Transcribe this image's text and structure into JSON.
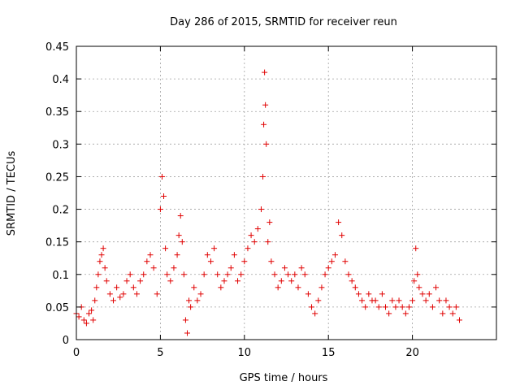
{
  "chart_data": {
    "type": "scatter",
    "title": "Day 286 of 2015, SRMTID for receiver reun",
    "xlabel": "GPS time / hours",
    "ylabel": "SRMTID / TECUs",
    "xlim": [
      0,
      25
    ],
    "ylim": [
      0,
      0.45
    ],
    "xticks": [
      0,
      5,
      10,
      15,
      20
    ],
    "xtick_labels": [
      "0",
      "5",
      "10",
      "15",
      "20"
    ],
    "yticks": [
      0,
      0.05,
      0.1,
      0.15,
      0.2,
      0.25,
      0.3,
      0.35,
      0.4,
      0.45
    ],
    "ytick_labels": [
      "0",
      "0.05",
      "0.1",
      "0.15",
      "0.2",
      "0.25",
      "0.3",
      "0.35",
      "0.4",
      "0.45"
    ],
    "grid": true,
    "marker": "+",
    "series": [
      {
        "name": "SRMTID",
        "color": "#e00000",
        "x": [
          0.0,
          0.15,
          0.3,
          0.45,
          0.6,
          0.75,
          0.9,
          1.0,
          1.1,
          1.2,
          1.3,
          1.4,
          1.5,
          1.6,
          1.7,
          1.8,
          2.0,
          2.2,
          2.4,
          2.6,
          2.8,
          3.0,
          3.2,
          3.4,
          3.6,
          3.8,
          4.0,
          4.2,
          4.4,
          4.6,
          4.8,
          5.0,
          5.1,
          5.2,
          5.3,
          5.4,
          5.6,
          5.8,
          6.0,
          6.1,
          6.2,
          6.3,
          6.4,
          6.5,
          6.6,
          6.7,
          6.8,
          7.0,
          7.2,
          7.4,
          7.6,
          7.8,
          8.0,
          8.2,
          8.4,
          8.6,
          8.8,
          9.0,
          9.2,
          9.4,
          9.6,
          9.8,
          10.0,
          10.2,
          10.4,
          10.6,
          10.8,
          11.0,
          11.1,
          11.15,
          11.2,
          11.25,
          11.3,
          11.4,
          11.5,
          11.6,
          11.8,
          12.0,
          12.2,
          12.4,
          12.6,
          12.8,
          13.0,
          13.2,
          13.4,
          13.6,
          13.8,
          14.0,
          14.2,
          14.4,
          14.6,
          14.8,
          15.0,
          15.2,
          15.4,
          15.6,
          15.8,
          16.0,
          16.2,
          16.4,
          16.6,
          16.8,
          17.0,
          17.2,
          17.4,
          17.6,
          17.8,
          18.0,
          18.2,
          18.4,
          18.6,
          18.8,
          19.0,
          19.2,
          19.4,
          19.6,
          19.8,
          20.0,
          20.1,
          20.2,
          20.3,
          20.4,
          20.6,
          20.8,
          21.0,
          21.2,
          21.4,
          21.6,
          21.8,
          22.0,
          22.2,
          22.4,
          22.6,
          22.8
        ],
        "y": [
          0.04,
          0.035,
          0.05,
          0.03,
          0.025,
          0.04,
          0.045,
          0.03,
          0.06,
          0.08,
          0.1,
          0.12,
          0.13,
          0.14,
          0.11,
          0.09,
          0.07,
          0.06,
          0.08,
          0.065,
          0.07,
          0.09,
          0.1,
          0.08,
          0.07,
          0.09,
          0.1,
          0.12,
          0.13,
          0.11,
          0.07,
          0.2,
          0.25,
          0.22,
          0.14,
          0.1,
          0.09,
          0.11,
          0.13,
          0.16,
          0.19,
          0.15,
          0.1,
          0.03,
          0.01,
          0.06,
          0.05,
          0.08,
          0.06,
          0.07,
          0.1,
          0.13,
          0.12,
          0.14,
          0.1,
          0.08,
          0.09,
          0.1,
          0.11,
          0.13,
          0.09,
          0.1,
          0.12,
          0.14,
          0.16,
          0.15,
          0.17,
          0.2,
          0.25,
          0.33,
          0.41,
          0.36,
          0.3,
          0.15,
          0.18,
          0.12,
          0.1,
          0.08,
          0.09,
          0.11,
          0.1,
          0.09,
          0.1,
          0.08,
          0.11,
          0.1,
          0.07,
          0.05,
          0.04,
          0.06,
          0.08,
          0.1,
          0.11,
          0.12,
          0.13,
          0.18,
          0.16,
          0.12,
          0.1,
          0.09,
          0.08,
          0.07,
          0.06,
          0.05,
          0.07,
          0.06,
          0.06,
          0.05,
          0.07,
          0.05,
          0.04,
          0.06,
          0.05,
          0.06,
          0.05,
          0.04,
          0.05,
          0.06,
          0.09,
          0.14,
          0.1,
          0.08,
          0.07,
          0.06,
          0.07,
          0.05,
          0.08,
          0.06,
          0.04,
          0.06,
          0.05,
          0.04,
          0.05,
          0.03
        ]
      }
    ]
  }
}
